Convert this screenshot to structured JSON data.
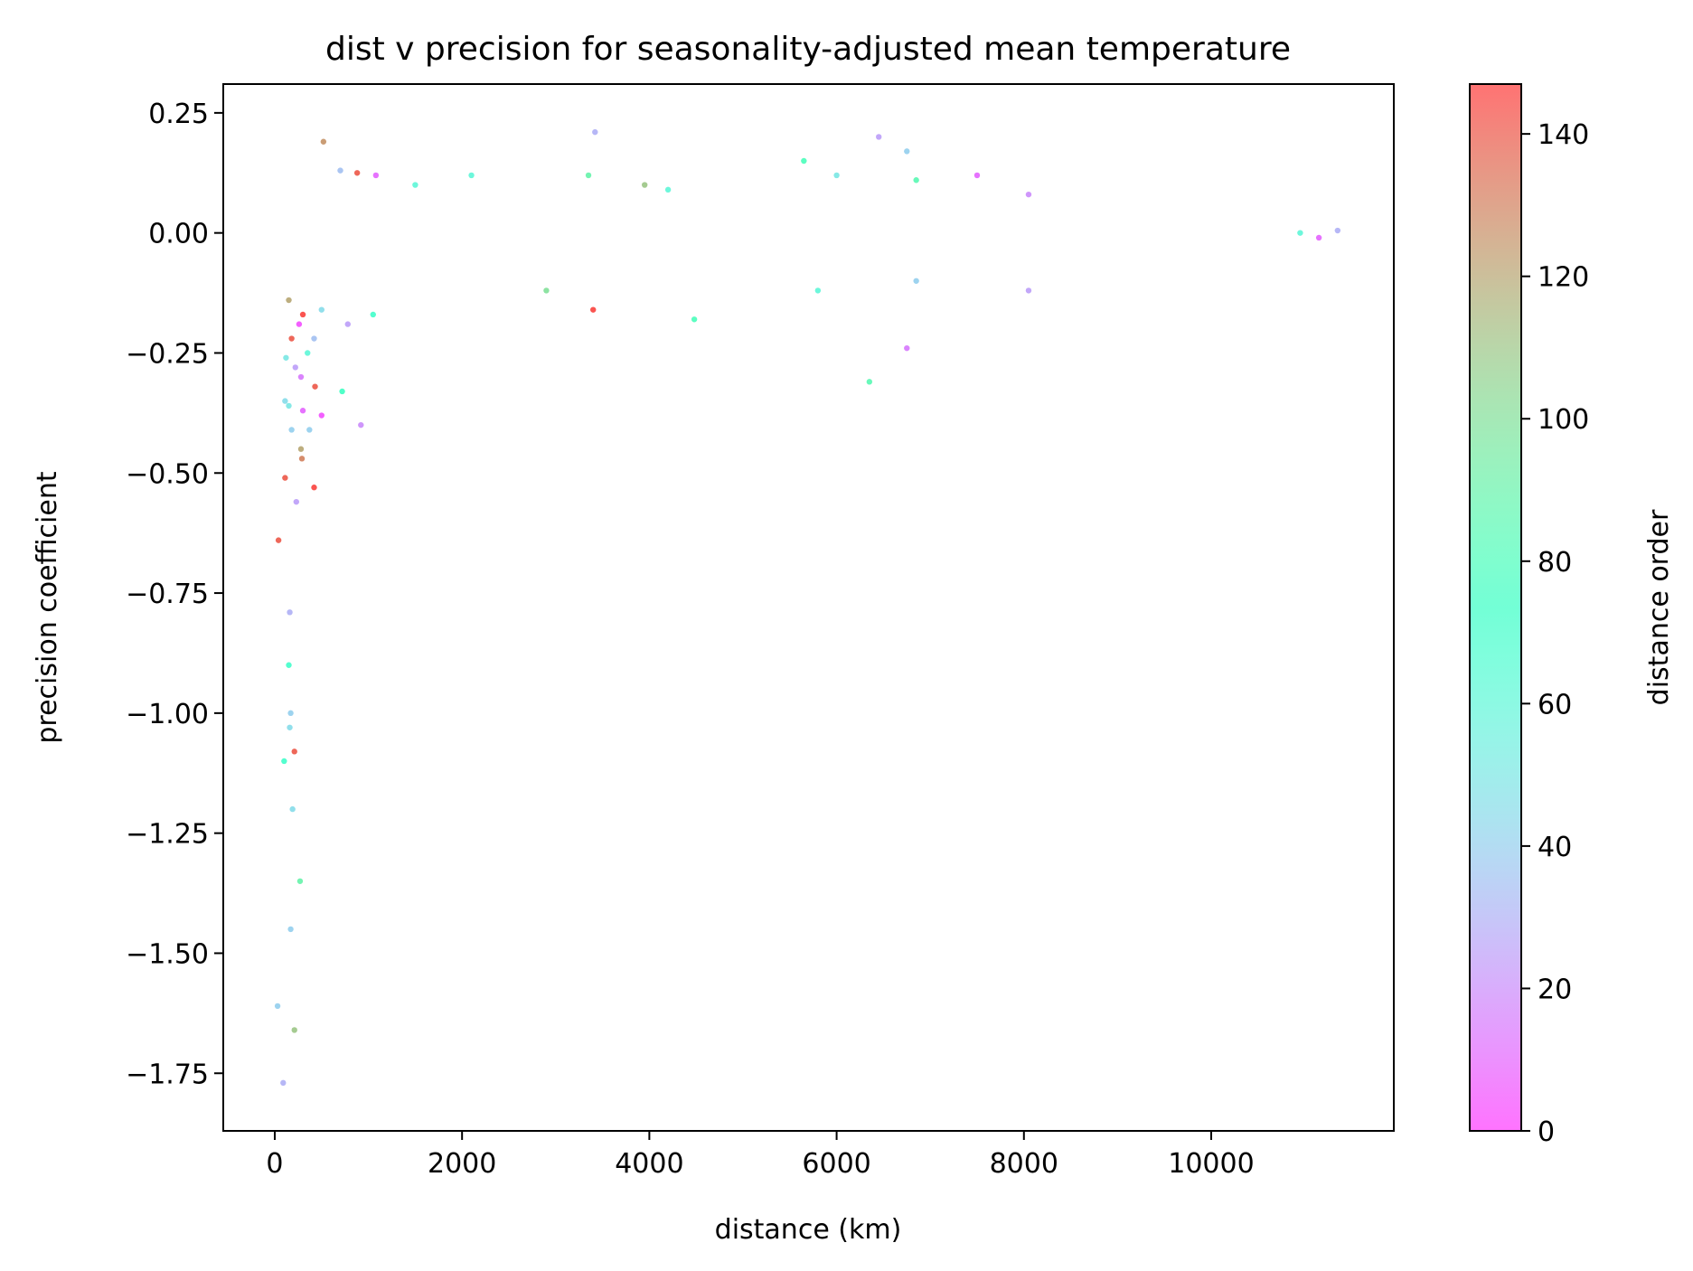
{
  "chart_data": {
    "type": "scatter",
    "title": "dist v precision for seasonality-adjusted mean temperature",
    "xlabel": "distance (km)",
    "ylabel": "precision coefficient",
    "xlim": [
      -550,
      11950
    ],
    "ylim": [
      -1.87,
      0.31
    ],
    "xticks": [
      0,
      2000,
      4000,
      6000,
      8000,
      10000
    ],
    "xtick_labels": [
      "0",
      "2000",
      "4000",
      "6000",
      "8000",
      "10000"
    ],
    "yticks": [
      0.25,
      0.0,
      -0.25,
      -0.5,
      -0.75,
      -1.0,
      -1.25,
      -1.5,
      -1.75
    ],
    "ytick_labels": [
      "0.25",
      "0.00",
      "−0.25",
      "−0.50",
      "−0.75",
      "−1.00",
      "−1.25",
      "−1.50",
      "−1.75"
    ],
    "grid": false,
    "colorbar": {
      "label": "distance order",
      "range": [
        0,
        147
      ],
      "ticks": [
        0,
        20,
        40,
        60,
        80,
        100,
        120,
        140
      ],
      "tick_labels": [
        "0",
        "20",
        "40",
        "60",
        "80",
        "100",
        "120",
        "140"
      ],
      "colormap": "rainbow",
      "alpha": 0.55
    },
    "series": [
      {
        "points": [
          {
            "x": 40,
            "y": -0.64,
            "c": 140
          },
          {
            "x": 30,
            "y": -1.61,
            "c": 40
          },
          {
            "x": 90,
            "y": -1.77,
            "c": 30
          },
          {
            "x": 210,
            "y": -1.66,
            "c": 110
          },
          {
            "x": 170,
            "y": -1.45,
            "c": 40
          },
          {
            "x": 270,
            "y": -1.35,
            "c": 90
          },
          {
            "x": 190,
            "y": -1.2,
            "c": 45
          },
          {
            "x": 100,
            "y": -1.1,
            "c": 70
          },
          {
            "x": 210,
            "y": -1.08,
            "c": 140
          },
          {
            "x": 160,
            "y": -1.03,
            "c": 45
          },
          {
            "x": 170,
            "y": -1.0,
            "c": 40
          },
          {
            "x": 150,
            "y": -0.9,
            "c": 70
          },
          {
            "x": 160,
            "y": -0.79,
            "c": 30
          },
          {
            "x": 230,
            "y": -0.56,
            "c": 25
          },
          {
            "x": 110,
            "y": -0.51,
            "c": 140
          },
          {
            "x": 420,
            "y": -0.53,
            "c": 145
          },
          {
            "x": 290,
            "y": -0.47,
            "c": 130
          },
          {
            "x": 280,
            "y": -0.45,
            "c": 120
          },
          {
            "x": 180,
            "y": -0.41,
            "c": 40
          },
          {
            "x": 370,
            "y": -0.41,
            "c": 40
          },
          {
            "x": 920,
            "y": -0.4,
            "c": 20
          },
          {
            "x": 110,
            "y": -0.35,
            "c": 45
          },
          {
            "x": 150,
            "y": -0.36,
            "c": 50
          },
          {
            "x": 430,
            "y": -0.32,
            "c": 140
          },
          {
            "x": 720,
            "y": -0.33,
            "c": 75
          },
          {
            "x": 300,
            "y": -0.37,
            "c": 10
          },
          {
            "x": 500,
            "y": -0.38,
            "c": 5
          },
          {
            "x": 280,
            "y": -0.3,
            "c": 15
          },
          {
            "x": 220,
            "y": -0.28,
            "c": 25
          },
          {
            "x": 120,
            "y": -0.26,
            "c": 50
          },
          {
            "x": 350,
            "y": -0.25,
            "c": 60
          },
          {
            "x": 180,
            "y": -0.22,
            "c": 140
          },
          {
            "x": 420,
            "y": -0.22,
            "c": 35
          },
          {
            "x": 260,
            "y": -0.19,
            "c": 5
          },
          {
            "x": 150,
            "y": -0.14,
            "c": 120
          },
          {
            "x": 300,
            "y": -0.17,
            "c": 145
          },
          {
            "x": 500,
            "y": -0.16,
            "c": 45
          },
          {
            "x": 780,
            "y": -0.19,
            "c": 25
          },
          {
            "x": 1050,
            "y": -0.17,
            "c": 70
          },
          {
            "x": 520,
            "y": 0.19,
            "c": 125
          },
          {
            "x": 700,
            "y": 0.13,
            "c": 35
          },
          {
            "x": 880,
            "y": 0.125,
            "c": 140
          },
          {
            "x": 1080,
            "y": 0.12,
            "c": 10
          },
          {
            "x": 1500,
            "y": 0.1,
            "c": 60
          },
          {
            "x": 2100,
            "y": 0.12,
            "c": 60
          },
          {
            "x": 3350,
            "y": 0.12,
            "c": 90
          },
          {
            "x": 3420,
            "y": 0.21,
            "c": 30
          },
          {
            "x": 3950,
            "y": 0.1,
            "c": 110
          },
          {
            "x": 4200,
            "y": 0.09,
            "c": 60
          },
          {
            "x": 5650,
            "y": 0.15,
            "c": 80
          },
          {
            "x": 6000,
            "y": 0.12,
            "c": 50
          },
          {
            "x": 6450,
            "y": 0.2,
            "c": 25
          },
          {
            "x": 6750,
            "y": 0.17,
            "c": 40
          },
          {
            "x": 6850,
            "y": 0.11,
            "c": 85
          },
          {
            "x": 7500,
            "y": 0.12,
            "c": 10
          },
          {
            "x": 8050,
            "y": 0.08,
            "c": 20
          },
          {
            "x": 3400,
            "y": -0.16,
            "c": 145
          },
          {
            "x": 4480,
            "y": -0.18,
            "c": 80
          },
          {
            "x": 6750,
            "y": -0.24,
            "c": 15
          },
          {
            "x": 6350,
            "y": -0.31,
            "c": 85
          },
          {
            "x": 8050,
            "y": -0.12,
            "c": 25
          },
          {
            "x": 6850,
            "y": -0.1,
            "c": 40
          },
          {
            "x": 5800,
            "y": -0.12,
            "c": 60
          },
          {
            "x": 2900,
            "y": -0.12,
            "c": 100
          },
          {
            "x": 11350,
            "y": 0.005,
            "c": 30
          },
          {
            "x": 11150,
            "y": -0.01,
            "c": 10
          },
          {
            "x": 10950,
            "y": 0.0,
            "c": 60
          }
        ]
      }
    ]
  }
}
